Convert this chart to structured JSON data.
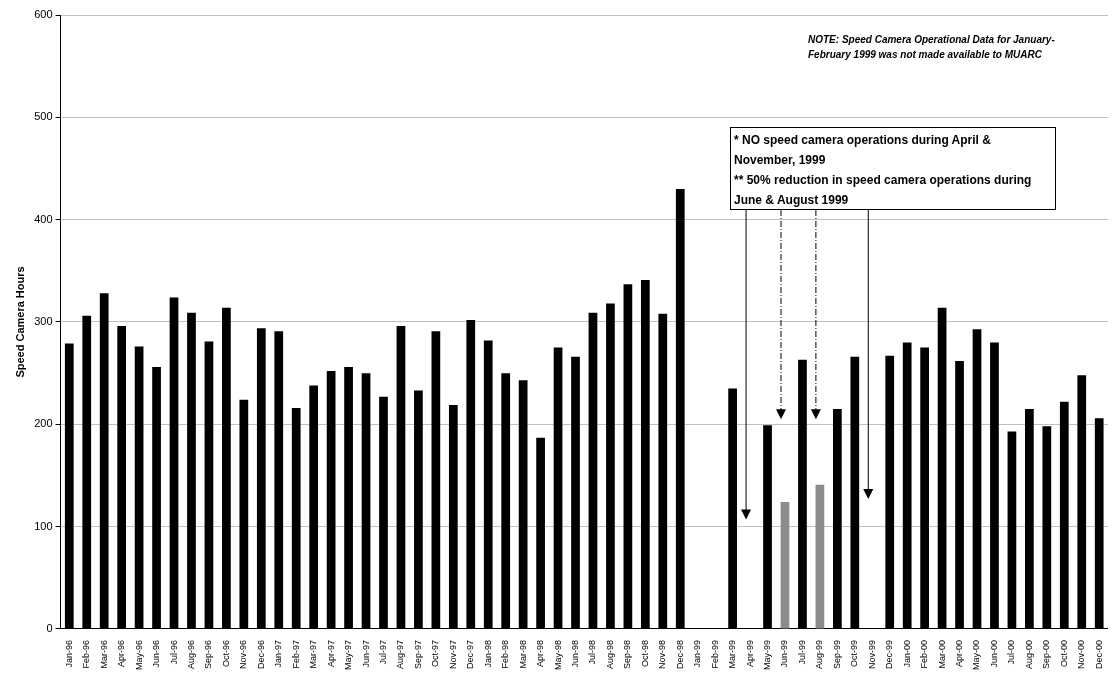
{
  "chart_data": {
    "type": "bar",
    "ylabel": "Speed Camera Hours",
    "categories": [
      "Jan-96",
      "Feb-96",
      "Mar-96",
      "Apr-96",
      "May-96",
      "Jun-96",
      "Jul-96",
      "Aug-96",
      "Sep-96",
      "Oct-96",
      "Nov-96",
      "Dec-96",
      "Jan-97",
      "Feb-97",
      "Mar-97",
      "Apr-97",
      "May-97",
      "Jun-97",
      "Jul-97",
      "Aug-97",
      "Sep-97",
      "Oct-97",
      "Nov-97",
      "Dec-97",
      "Jan-98",
      "Feb-98",
      "Mar-98",
      "Apr-98",
      "May-98",
      "Jun-98",
      "Jul-98",
      "Aug-98",
      "Sep-98",
      "Oct-98",
      "Nov-98",
      "Dec-98",
      "Jan-99",
      "Feb-99",
      "Mar-99",
      "Apr-99",
      "May-99",
      "Jun-99",
      "Jul-99",
      "Aug-99",
      "Sep-99",
      "Oct-99",
      "Nov-99",
      "Dec-99",
      "Jan-00",
      "Feb-00",
      "Mar-00",
      "Apr-00",
      "May-00",
      "Jun-00",
      "Jul-00",
      "Aug-00",
      "Sep-00",
      "Oct-00",
      "Nov-00",
      "Dec-00"
    ],
    "values": [
      279,
      306,
      328,
      296,
      276,
      256,
      324,
      309,
      281,
      314,
      224,
      294,
      291,
      216,
      238,
      252,
      256,
      250,
      227,
      296,
      233,
      291,
      219,
      302,
      282,
      250,
      243,
      187,
      275,
      266,
      309,
      318,
      337,
      341,
      308,
      430,
      null,
      null,
      235,
      0,
      199,
      124,
      263,
      141,
      215,
      266,
      0,
      267,
      280,
      275,
      314,
      262,
      293,
      280,
      193,
      215,
      198,
      222,
      248,
      206
    ],
    "colors": [
      "#000000",
      "#000000",
      "#000000",
      "#000000",
      "#000000",
      "#000000",
      "#000000",
      "#000000",
      "#000000",
      "#000000",
      "#000000",
      "#000000",
      "#000000",
      "#000000",
      "#000000",
      "#000000",
      "#000000",
      "#000000",
      "#000000",
      "#000000",
      "#000000",
      "#000000",
      "#000000",
      "#000000",
      "#000000",
      "#000000",
      "#000000",
      "#000000",
      "#000000",
      "#000000",
      "#000000",
      "#000000",
      "#000000",
      "#000000",
      "#000000",
      "#000000",
      "#000000",
      "#000000",
      "#000000",
      "#000000",
      "#000000",
      "#8c8c8c",
      "#000000",
      "#8c8c8c",
      "#000000",
      "#000000",
      "#000000",
      "#000000",
      "#000000",
      "#000000",
      "#000000",
      "#000000",
      "#000000",
      "#000000",
      "#000000",
      "#000000",
      "#000000",
      "#000000",
      "#000000",
      "#000000"
    ],
    "ylim": [
      0,
      600
    ],
    "yticks": [
      0,
      100,
      200,
      300,
      400,
      500,
      600
    ],
    "grid": "y",
    "legend": false,
    "annotations": [
      "NOTE: Speed Camera Operational Data for January-February 1999 was not made available to MUARC",
      "* NO speed camera operations during April & November, 1999",
      "** 50% reduction in speed camera operations during June & August 1999"
    ]
  }
}
